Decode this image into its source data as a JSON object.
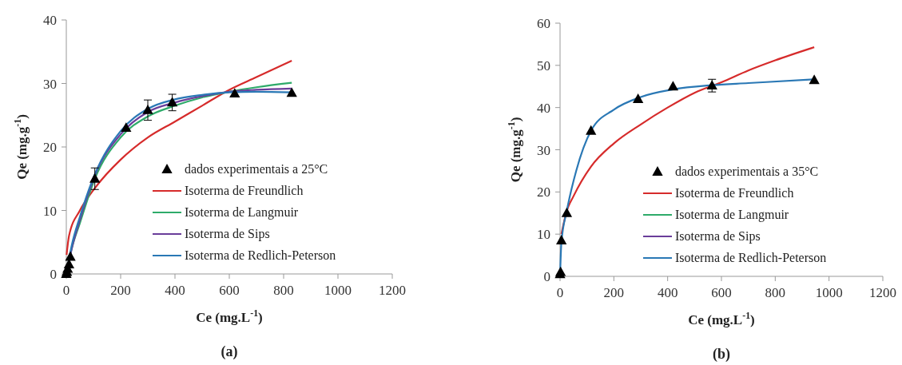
{
  "chart_data": [
    {
      "type": "line",
      "title": "(a)",
      "xlabel": "Ce (mg.L$^{-1}$)",
      "ylabel": "Qe (mg.g$^{-1}$)",
      "xlim": [
        0,
        1200
      ],
      "xticks": [
        0,
        200,
        400,
        600,
        800,
        1000,
        1200
      ],
      "ylim": [
        0,
        40
      ],
      "yticks": [
        0,
        10,
        20,
        30,
        40
      ],
      "grid": false,
      "legend": "bottom right",
      "series": [
        {
          "name": "dados experimentais a 25°C",
          "type": "scatter",
          "color": "#000000",
          "marker": "triangle",
          "x": [
            0,
            2,
            5,
            10,
            15,
            105,
            220,
            300,
            390,
            620,
            830
          ],
          "values": [
            0,
            0.3,
            0.8,
            1.5,
            2.7,
            15,
            23,
            25.8,
            27,
            28.4,
            28.5
          ],
          "errors": [
            null,
            null,
            null,
            null,
            null,
            1.7,
            null,
            1.6,
            1.3,
            null,
            null
          ]
        },
        {
          "name": "Isoterma de Freundlich",
          "color": "#d62b2b",
          "marker": "none",
          "x": [
            1,
            10,
            50,
            105,
            200,
            300,
            400,
            500,
            600,
            700,
            830
          ],
          "values": [
            3,
            6,
            10,
            13.5,
            18,
            21.5,
            24,
            26.5,
            29,
            31,
            33.6
          ]
        },
        {
          "name": "Isoterma de Langmuir",
          "color": "#2eab6a",
          "marker": "none",
          "x": [
            0,
            20,
            50,
            105,
            200,
            300,
            400,
            500,
            600,
            700,
            830
          ],
          "values": [
            0,
            4,
            8,
            15,
            21.5,
            24.8,
            26.5,
            27.8,
            28.7,
            29.4,
            30.1
          ]
        },
        {
          "name": "Isoterma de Sips",
          "color": "#6a3d9a",
          "marker": "none",
          "x": [
            0,
            20,
            50,
            105,
            200,
            300,
            400,
            500,
            600,
            700,
            830
          ],
          "values": [
            0,
            4,
            8.5,
            15.5,
            22,
            25.5,
            27,
            28,
            28.7,
            29,
            29.2
          ]
        },
        {
          "name": "Isoterma de Redlich-Peterson",
          "color": "#2a78b5",
          "marker": "none",
          "x": [
            0,
            20,
            50,
            105,
            200,
            300,
            400,
            500,
            600,
            700,
            830
          ],
          "values": [
            0,
            4.5,
            9,
            15.7,
            22.5,
            26,
            27.5,
            28.2,
            28.6,
            28.7,
            28.6
          ]
        }
      ]
    },
    {
      "type": "line",
      "title": "(b)",
      "xlabel": "Ce (mg.L$^{-1}$)",
      "ylabel": "Qe (mg.g$^{-1}$)",
      "xlim": [
        0,
        1200
      ],
      "xticks": [
        0,
        200,
        400,
        600,
        800,
        1000,
        1200
      ],
      "ylim": [
        0,
        60
      ],
      "yticks": [
        0,
        10,
        20,
        30,
        40,
        50,
        60
      ],
      "grid": false,
      "legend": "bottom right",
      "series": [
        {
          "name": "dados experimentais a 35°C",
          "type": "scatter",
          "color": "#000000",
          "marker": "triangle",
          "x": [
            0,
            2,
            5,
            25,
            115,
            290,
            420,
            565,
            945
          ],
          "values": [
            0.5,
            1,
            8.5,
            15,
            34.5,
            42,
            45,
            45.2,
            46.5
          ],
          "errors": [
            null,
            null,
            null,
            null,
            null,
            null,
            null,
            1.5,
            null
          ]
        },
        {
          "name": "Isoterma de Freundlich",
          "color": "#d62b2b",
          "marker": "none",
          "x": [
            5,
            25,
            50,
            115,
            200,
            300,
            400,
            500,
            600,
            700,
            800,
            945
          ],
          "values": [
            10,
            15.5,
            19,
            26,
            31.5,
            36,
            40,
            43.5,
            46,
            48.8,
            51.2,
            54.3
          ]
        },
        {
          "name": "Isoterma de Langmuir",
          "color": "#2eab6a",
          "marker": "none"
        },
        {
          "name": "Isoterma de Sips",
          "color": "#6a3d9a",
          "marker": "none"
        },
        {
          "name": "Isoterma de Redlich-Peterson",
          "color": "#2a78b5",
          "marker": "none",
          "x": [
            0,
            5,
            25,
            60,
            115,
            200,
            300,
            420,
            565,
            700,
            945
          ],
          "values": [
            0,
            8,
            15.5,
            25,
            34.5,
            39.5,
            42.5,
            44.3,
            45.3,
            45.8,
            46.7
          ]
        }
      ]
    }
  ]
}
